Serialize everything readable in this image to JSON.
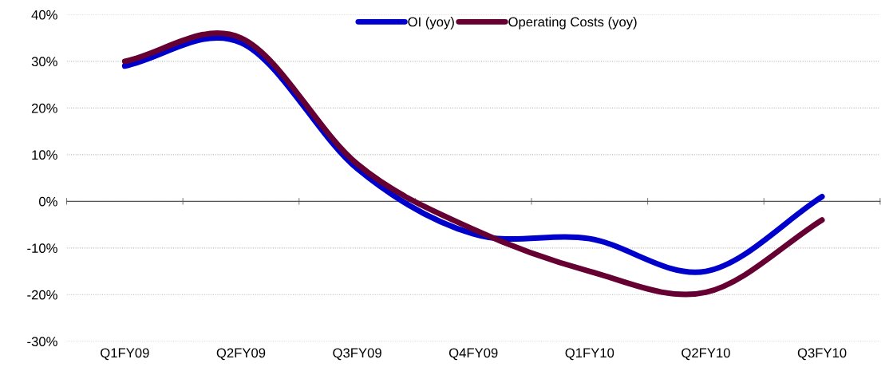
{
  "chart_data": {
    "type": "line",
    "categories": [
      "Q1FY09",
      "Q2FY09",
      "Q3FY09",
      "Q4FY09",
      "Q1FY10",
      "Q2FY10",
      "Q3FY10"
    ],
    "series": [
      {
        "name": "OI (yoy)",
        "color": "#0000cc",
        "values": [
          29,
          34,
          7,
          -7,
          -8,
          -15,
          1
        ]
      },
      {
        "name": "Operating Costs (yoy)",
        "color": "#660033",
        "values": [
          30,
          35,
          8,
          -6,
          -15,
          -19.5,
          -4
        ]
      }
    ],
    "ylim": [
      -30,
      40
    ],
    "yticks": [
      {
        "value": -30,
        "label": "-30%"
      },
      {
        "value": -20,
        "label": "-20%"
      },
      {
        "value": -10,
        "label": "-10%"
      },
      {
        "value": 0,
        "label": "0%"
      },
      {
        "value": 10,
        "label": "10%"
      },
      {
        "value": 20,
        "label": "20%"
      },
      {
        "value": 30,
        "label": "30%"
      },
      {
        "value": 40,
        "label": "40%"
      }
    ],
    "grid": "y",
    "legend": "top",
    "marker": "none",
    "line_style": "solid"
  }
}
